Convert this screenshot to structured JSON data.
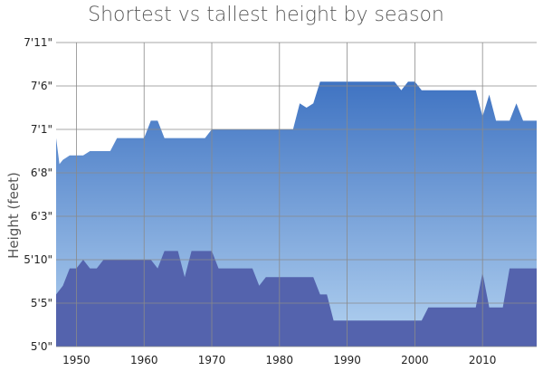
{
  "chart_data": {
    "type": "area",
    "title": "Shortest vs tallest height by season",
    "xlabel": "",
    "ylabel": "Height (feet)",
    "xlim": [
      1947,
      2018
    ],
    "ylim": [
      60,
      95
    ],
    "x_ticks": [
      1950,
      1960,
      1970,
      1980,
      1990,
      2000,
      2010
    ],
    "y_ticks": [
      {
        "value": 60,
        "label": "5'0\""
      },
      {
        "value": 65,
        "label": "5'5\""
      },
      {
        "value": 70,
        "label": "5'10\""
      },
      {
        "value": 75,
        "label": "6'3\""
      },
      {
        "value": 80,
        "label": "6'8\""
      },
      {
        "value": 85,
        "label": "7'1\""
      },
      {
        "value": 90,
        "label": "7'6\""
      },
      {
        "value": 95,
        "label": "7'11\""
      }
    ],
    "grid": true,
    "colors": {
      "tallest_top": "#3f73c2",
      "tallest_bottom": "#b4d3f1",
      "shortest": "#5463ad"
    },
    "series": [
      {
        "key": "tallest",
        "x": [
          1947,
          1947.5,
          1948,
          1949,
          1950,
          1951,
          1952,
          1953,
          1954,
          1955,
          1956,
          1957,
          1958,
          1959,
          1960,
          1961,
          1962,
          1963,
          1964,
          1965,
          1966,
          1967,
          1968,
          1969,
          1970,
          1971,
          1972,
          1973,
          1974,
          1975,
          1976,
          1977,
          1978,
          1979,
          1980,
          1981,
          1982,
          1983,
          1984,
          1985,
          1986,
          1987,
          1988,
          1989,
          1990,
          1991,
          1992,
          1993,
          1994,
          1995,
          1996,
          1997,
          1998,
          1999,
          2000,
          2001,
          2002,
          2003,
          2004,
          2005,
          2006,
          2007,
          2008,
          2009,
          2010,
          2011,
          2012,
          2013,
          2014,
          2015,
          2016,
          2017,
          2018
        ],
        "values": [
          84,
          81,
          81.5,
          82,
          82,
          82,
          82.5,
          82.5,
          82.5,
          82.5,
          84,
          84,
          84,
          84,
          84,
          86,
          86,
          84,
          84,
          84,
          84,
          84,
          84,
          84,
          85,
          85,
          85,
          85,
          85,
          85,
          85,
          85,
          85,
          85,
          85,
          85,
          85,
          88,
          87.5,
          88,
          90.5,
          90.5,
          90.5,
          90.5,
          90.5,
          90.5,
          90.5,
          90.5,
          90.5,
          90.5,
          90.5,
          90.5,
          89.5,
          90.5,
          90.5,
          89.5,
          89.5,
          89.5,
          89.5,
          89.5,
          89.5,
          89.5,
          89.5,
          89.5,
          86.5,
          89,
          86,
          86,
          86,
          88,
          86,
          86,
          86
        ]
      },
      {
        "key": "shortest",
        "x": [
          1947,
          1948,
          1949,
          1950,
          1951,
          1952,
          1953,
          1954,
          1955,
          1956,
          1957,
          1958,
          1959,
          1960,
          1961,
          1962,
          1963,
          1964,
          1965,
          1966,
          1967,
          1968,
          1969,
          1970,
          1971,
          1972,
          1973,
          1974,
          1975,
          1976,
          1977,
          1978,
          1979,
          1980,
          1981,
          1982,
          1983,
          1984,
          1985,
          1986,
          1987,
          1988,
          1989,
          1990,
          1991,
          1992,
          1993,
          1994,
          1995,
          1996,
          1997,
          1998,
          1999,
          2000,
          2001,
          2002,
          2003,
          2004,
          2005,
          2006,
          2007,
          2008,
          2009,
          2010,
          2011,
          2012,
          2013,
          2014,
          2015,
          2016,
          2017,
          2018
        ],
        "values": [
          66,
          67,
          69,
          69,
          70,
          69,
          69,
          70,
          70,
          70,
          70,
          70,
          70,
          70,
          70,
          69,
          71,
          71,
          71,
          68,
          71,
          71,
          71,
          71,
          69,
          69,
          69,
          69,
          69,
          69,
          67,
          68,
          68,
          68,
          68,
          68,
          68,
          68,
          68,
          66,
          66,
          63,
          63,
          63,
          63,
          63,
          63,
          63,
          63,
          63,
          63,
          63,
          63,
          63,
          63,
          64.5,
          64.5,
          64.5,
          64.5,
          64.5,
          64.5,
          64.5,
          64.5,
          68.5,
          64.5,
          64.5,
          64.5,
          69,
          69,
          69,
          69,
          69
        ]
      }
    ]
  }
}
